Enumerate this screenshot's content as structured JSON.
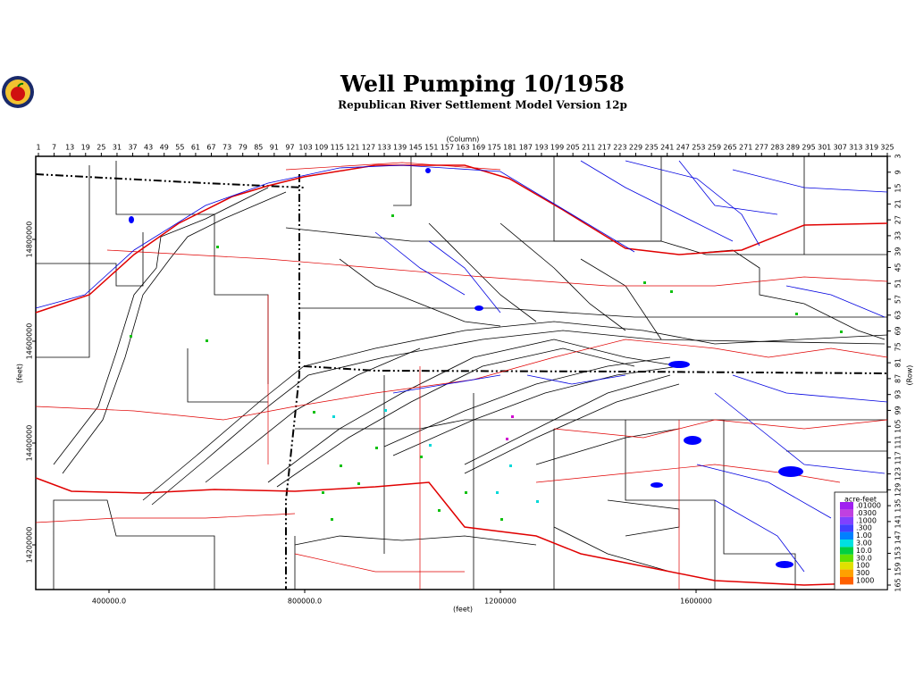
{
  "header": {
    "title": "Well Pumping 10/1958",
    "subtitle": "Republican River Settlement Model Version 12p"
  },
  "axes": {
    "column_title": "(Column)",
    "row_title": "(Row)",
    "x_title": "(feet)",
    "y_title": "(feet)",
    "columns": [
      1,
      7,
      13,
      19,
      25,
      31,
      37,
      43,
      49,
      55,
      61,
      67,
      73,
      79,
      85,
      91,
      97,
      103,
      109,
      115,
      121,
      127,
      133,
      139,
      145,
      151,
      157,
      163,
      169,
      175,
      181,
      187,
      193,
      199,
      205,
      211,
      217,
      223,
      229,
      235,
      241,
      247,
      253,
      259,
      265,
      271,
      277,
      283,
      289,
      295,
      301,
      307,
      313,
      319,
      325
    ],
    "rows": [
      3,
      9,
      15,
      21,
      27,
      33,
      39,
      45,
      51,
      57,
      63,
      69,
      75,
      81,
      87,
      93,
      99,
      105,
      111,
      117,
      123,
      129,
      135,
      141,
      147,
      153,
      159,
      165
    ],
    "xticks": [
      {
        "value": 400000,
        "label": "400000.0"
      },
      {
        "value": 800000,
        "label": "800000.0"
      },
      1200000,
      1600000
    ],
    "yticks": [
      14800000,
      14600000,
      14400000,
      14200000
    ]
  },
  "legend": {
    "title": "acre-feet",
    "entries": [
      {
        "label": ".01000",
        "color": "#a020f0"
      },
      {
        "label": ".0300",
        "color": "#c040e0"
      },
      {
        "label": ".1000",
        "color": "#8040ff"
      },
      {
        "label": ".300",
        "color": "#4040ff"
      },
      {
        "label": "1.00",
        "color": "#0080ff"
      },
      {
        "label": "3.00",
        "color": "#00e0e0"
      },
      {
        "label": "10.0",
        "color": "#00d040"
      },
      {
        "label": "30.0",
        "color": "#60e000"
      },
      {
        "label": "100",
        "color": "#e0e000"
      },
      {
        "label": "300",
        "color": "#ffa000"
      },
      {
        "label": "1000",
        "color": "#ff6000"
      }
    ]
  }
}
